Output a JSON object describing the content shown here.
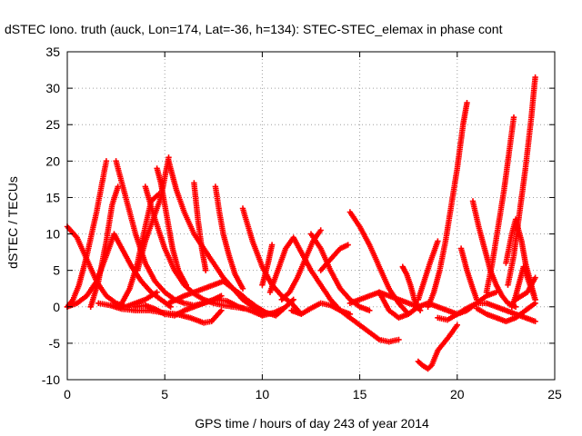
{
  "chart_data": {
    "type": "scatter",
    "title": "dSTEC Iono. truth (auck, Lon=174, Lat=-36, h=134): STEC-STEC_elemax in phase cont",
    "xlabel": "GPS time / hours of day 243 of year 2014",
    "ylabel": "dSTEC  / TECUs",
    "xlim": [
      0,
      25
    ],
    "ylim": [
      -10,
      35
    ],
    "xticks": [
      0,
      5,
      10,
      15,
      20,
      25
    ],
    "yticks": [
      -10,
      -5,
      0,
      5,
      10,
      15,
      20,
      25,
      30,
      35
    ],
    "grid": true,
    "marker": "plus",
    "color": "#ff0000",
    "series": [
      {
        "x": [
          0.0,
          0.5,
          1.0,
          1.5,
          2.0,
          2.5,
          3.0,
          3.5,
          4.0,
          4.6
        ],
        "y": [
          11,
          9.5,
          6.5,
          3.5,
          1.5,
          0.5,
          0.0,
          0.5,
          1.0,
          2.0
        ]
      },
      {
        "x": [
          0.0,
          0.3,
          0.6,
          1.0,
          1.5,
          2.0
        ],
        "y": [
          0.0,
          1.0,
          3.0,
          7.0,
          13.0,
          20.0
        ]
      },
      {
        "x": [
          0.0,
          0.5,
          1.0,
          1.5,
          2.0,
          2.4,
          2.8,
          3.3,
          3.8,
          4.3,
          4.8,
          5.3
        ],
        "y": [
          0.0,
          0.5,
          1.5,
          3.5,
          7.0,
          10.0,
          8.0,
          5.5,
          3.5,
          2.0,
          1.0,
          0.0
        ]
      },
      {
        "x": [
          1.2,
          1.6,
          2.0,
          2.3,
          2.6
        ],
        "y": [
          0.0,
          3.5,
          9.0,
          14.0,
          16.5
        ]
      },
      {
        "x": [
          2.5,
          3.0,
          3.5,
          4.0,
          4.5,
          5.0,
          5.5,
          6.0,
          6.5,
          7.0,
          7.5,
          7.9
        ],
        "y": [
          20.0,
          15.0,
          10.0,
          6.0,
          3.5,
          2.0,
          1.0,
          0.5,
          0.2,
          0.5,
          1.0,
          1.5
        ]
      },
      {
        "x": [
          1.6,
          2.2,
          2.8,
          3.5,
          4.2,
          4.9,
          5.6,
          6.3,
          7.0,
          7.4,
          7.9
        ],
        "y": [
          0.5,
          0.2,
          -0.3,
          -0.5,
          -0.5,
          -0.8,
          -1.0,
          -1.5,
          -2.2,
          -2.0,
          -0.5
        ]
      },
      {
        "x": [
          2.8,
          3.2,
          3.6,
          4.0,
          4.3,
          4.7
        ],
        "y": [
          0.5,
          2.5,
          6.0,
          11.0,
          14.5,
          15.5
        ]
      },
      {
        "x": [
          4.0,
          4.5,
          5.0,
          5.5,
          6.0,
          6.5,
          7.0,
          7.5,
          8.0,
          8.5,
          9.0
        ],
        "y": [
          16.5,
          12.0,
          8.0,
          5.0,
          3.0,
          1.8,
          1.0,
          0.5,
          0.2,
          0.0,
          -0.2
        ]
      },
      {
        "x": [
          3.5,
          4.0,
          4.5,
          5.0,
          5.5,
          6.0,
          6.5,
          7.0
        ],
        "y": [
          0.0,
          0.2,
          -0.3,
          -1.0,
          -1.2,
          -0.5,
          0.0,
          0.5
        ]
      },
      {
        "x": [
          4.6,
          4.8,
          5.0,
          5.2,
          5.4,
          5.7,
          6.1
        ],
        "y": [
          19.0,
          17.0,
          14.0,
          11.0,
          8.0,
          5.0,
          3.0
        ]
      },
      {
        "x": [
          3.6,
          4.0,
          4.4,
          4.8,
          5.2
        ],
        "y": [
          5.0,
          9.0,
          12.0,
          15.0,
          20.5
        ]
      },
      {
        "x": [
          5.2,
          5.6,
          6.0,
          6.5,
          7.0,
          7.5,
          8.0,
          8.5,
          9.0,
          9.5,
          10.0
        ],
        "y": [
          20.0,
          16.0,
          13.0,
          10.0,
          8.0,
          6.0,
          4.0,
          2.5,
          1.5,
          0.0,
          -1.2
        ]
      },
      {
        "x": [
          6.5,
          6.7,
          6.9,
          7.1
        ],
        "y": [
          17.0,
          12.0,
          8.0,
          5.0
        ]
      },
      {
        "x": [
          7.6,
          7.8,
          8.0,
          8.3,
          8.6,
          9.0
        ],
        "y": [
          16.5,
          13.0,
          10.0,
          7.0,
          4.5,
          2.5
        ]
      },
      {
        "x": [
          5.2,
          5.6,
          6.0,
          6.5,
          7.0,
          7.5,
          8.0,
          8.5,
          9.0,
          9.5
        ],
        "y": [
          0.5,
          1.0,
          1.5,
          2.0,
          2.5,
          3.0,
          3.5,
          2.5,
          1.0,
          0.0
        ]
      },
      {
        "x": [
          7.0,
          7.6,
          8.2,
          8.8,
          9.4,
          10.0,
          10.6,
          11.1
        ],
        "y": [
          0.5,
          1.0,
          0.8,
          0.0,
          -0.5,
          -1.2,
          -0.8,
          -0.2
        ]
      },
      {
        "x": [
          9.0,
          9.5,
          10.0,
          10.5,
          11.0,
          11.5,
          12.0
        ],
        "y": [
          13.5,
          9.0,
          5.5,
          3.0,
          1.5,
          0.5,
          -1.0
        ]
      },
      {
        "x": [
          9.2,
          9.7,
          10.2,
          10.7,
          11.2,
          11.6
        ],
        "y": [
          1.0,
          0.0,
          -0.8,
          -1.2,
          0.0,
          1.0
        ]
      },
      {
        "x": [
          10.0,
          10.3,
          10.5
        ],
        "y": [
          3.0,
          6.0,
          8.5
        ]
      },
      {
        "x": [
          10.4,
          10.8,
          11.2,
          11.6,
          12.0,
          12.5,
          13.0,
          13.5,
          14.0
        ],
        "y": [
          2.0,
          5.0,
          8.0,
          9.5,
          7.5,
          5.0,
          3.0,
          1.0,
          -0.5
        ]
      },
      {
        "x": [
          11.0,
          11.4,
          11.8,
          12.2,
          12.6,
          13.0
        ],
        "y": [
          1.0,
          2.0,
          4.0,
          6.5,
          9.0,
          10.5
        ]
      },
      {
        "x": [
          12.5,
          13.0,
          13.5,
          14.0,
          14.5,
          15.0,
          15.5
        ],
        "y": [
          10.0,
          8.0,
          5.0,
          2.5,
          1.0,
          0.0,
          -0.5
        ]
      },
      {
        "x": [
          11.5,
          12.0,
          12.5,
          13.0,
          13.5,
          14.0,
          14.5
        ],
        "y": [
          -0.5,
          -1.0,
          -0.2,
          0.5,
          0.2,
          -0.5,
          -1.0
        ]
      },
      {
        "x": [
          13.0,
          13.5,
          14.0,
          14.4
        ],
        "y": [
          5.0,
          6.5,
          8.0,
          8.5
        ]
      },
      {
        "x": [
          14.5,
          15.0,
          15.5,
          16.0,
          16.5,
          17.0,
          17.5
        ],
        "y": [
          13.0,
          11.0,
          8.5,
          5.5,
          2.5,
          0.5,
          -1.0
        ]
      },
      {
        "x": [
          14.0,
          14.5,
          15.0,
          15.5,
          16.0,
          16.5,
          17.0
        ],
        "y": [
          -0.5,
          -1.5,
          -2.5,
          -3.5,
          -4.5,
          -4.8,
          -4.5
        ]
      },
      {
        "x": [
          14.5,
          15.0,
          15.5,
          16.0,
          16.5,
          17.0,
          17.5,
          18.0
        ],
        "y": [
          0.5,
          1.0,
          1.5,
          2.0,
          1.5,
          1.0,
          0.5,
          0.0
        ]
      },
      {
        "x": [
          16.0,
          16.5,
          17.0,
          17.5,
          18.0,
          18.5,
          19.0,
          19.5,
          20.0,
          20.5,
          21.0,
          21.5,
          22.0
        ],
        "y": [
          2.0,
          -0.5,
          -1.5,
          -1.0,
          0.0,
          0.5,
          0.0,
          -0.5,
          -1.0,
          -0.5,
          0.5,
          1.5,
          2.0
        ]
      },
      {
        "x": [
          17.2,
          17.4,
          17.6,
          17.8,
          18.1
        ],
        "y": [
          5.5,
          4.5,
          3.0,
          1.0,
          -0.5
        ]
      },
      {
        "x": [
          18.0,
          18.2,
          18.5,
          18.7,
          19.0,
          19.3,
          19.6,
          20.0
        ],
        "y": [
          -7.5,
          -8.0,
          -8.5,
          -8.0,
          -6.0,
          -5.0,
          -4.0,
          -2.5
        ]
      },
      {
        "x": [
          18.5,
          18.8,
          19.1,
          19.4,
          19.7,
          20.0,
          20.3,
          20.5
        ],
        "y": [
          0.0,
          2.0,
          5.0,
          9.0,
          14.0,
          19.0,
          25.0,
          28.0
        ]
      },
      {
        "x": [
          18.0,
          18.3,
          18.6,
          19.0
        ],
        "y": [
          1.0,
          3.5,
          6.0,
          9.0
        ]
      },
      {
        "x": [
          19.0,
          19.5,
          20.0,
          20.5,
          21.0,
          21.5,
          22.0,
          22.5,
          23.0,
          23.5,
          24.0
        ],
        "y": [
          -1.5,
          -1.8,
          -1.0,
          -0.2,
          0.5,
          0.5,
          0.0,
          -0.5,
          -1.0,
          -1.5,
          -2.0
        ]
      },
      {
        "x": [
          20.2,
          20.5,
          20.8,
          21.0
        ],
        "y": [
          8.0,
          5.0,
          2.5,
          1.0
        ]
      },
      {
        "x": [
          20.8,
          21.1,
          21.4,
          21.7,
          22.0,
          22.3,
          22.6,
          23.0
        ],
        "y": [
          14.5,
          11.0,
          8.0,
          5.0,
          3.0,
          1.5,
          0.5,
          0.0
        ]
      },
      {
        "x": [
          21.0,
          21.5,
          22.0,
          22.5,
          23.0,
          23.5,
          24.0
        ],
        "y": [
          -0.2,
          -1.0,
          -1.5,
          -2.0,
          -1.5,
          -0.5,
          0.5
        ]
      },
      {
        "x": [
          21.5,
          21.8,
          22.1,
          22.4,
          22.7,
          22.9
        ],
        "y": [
          2.0,
          6.0,
          11.0,
          16.0,
          22.0,
          26.0
        ]
      },
      {
        "x": [
          22.5,
          22.8,
          23.0,
          23.3,
          23.5,
          23.8,
          24.0
        ],
        "y": [
          6.0,
          10.0,
          12.0,
          9.0,
          6.0,
          3.0,
          1.0
        ]
      },
      {
        "x": [
          22.6,
          22.9,
          23.2,
          23.5,
          23.8,
          24.0
        ],
        "y": [
          3.0,
          7.0,
          13.0,
          19.0,
          26.0,
          31.5
        ]
      },
      {
        "x": [
          22.8,
          23.0,
          23.2,
          23.4,
          23.6,
          23.8,
          24.0
        ],
        "y": [
          0.0,
          1.5,
          3.5,
          5.5,
          4.0,
          2.5,
          1.0
        ]
      },
      {
        "x": [
          23.0,
          23.3,
          23.6,
          24.0
        ],
        "y": [
          1.0,
          1.5,
          2.0,
          4.0
        ]
      }
    ]
  }
}
